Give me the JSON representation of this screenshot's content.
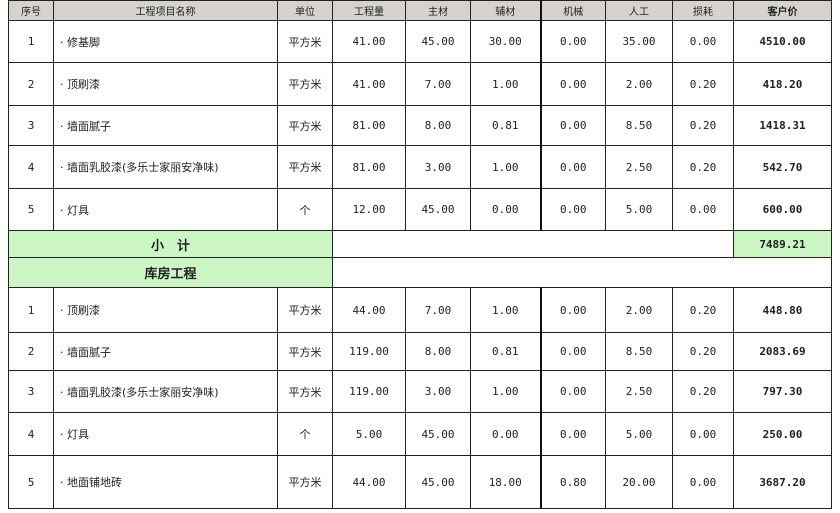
{
  "headers": [
    "序号",
    "工程项目名称",
    "单位",
    "工程量",
    "主材",
    "辅材",
    "机械",
    "人工",
    "损耗",
    "客户价"
  ],
  "section1": {
    "rows": [
      [
        "1",
        "· 修基脚",
        "平方米",
        "41.00",
        "45.00",
        "30.00",
        "0.00",
        "35.00",
        "0.00",
        "4510.00"
      ],
      [
        "2",
        "· 顶刷漆",
        "平方米",
        "41.00",
        "7.00",
        "1.00",
        "0.00",
        "2.00",
        "0.20",
        "418.20"
      ],
      [
        "3",
        "· 墙面腻子",
        "平方米",
        "81.00",
        "8.00",
        "0.81",
        "0.00",
        "8.50",
        "0.20",
        "1418.31"
      ],
      [
        "4",
        "· 墙面乳胶漆(多乐士家丽安净味)",
        "平方米",
        "81.00",
        "3.00",
        "1.00",
        "0.00",
        "2.50",
        "0.20",
        "542.70"
      ],
      [
        "5",
        "· 灯具",
        "个",
        "12.00",
        "45.00",
        "0.00",
        "0.00",
        "5.00",
        "0.00",
        "600.00"
      ]
    ],
    "subtotal_label": "小　计",
    "subtotal": "7489.21"
  },
  "section2": {
    "title": "库房工程",
    "rows": [
      [
        "1",
        "· 顶刷漆",
        "平方米",
        "44.00",
        "7.00",
        "1.00",
        "0.00",
        "2.00",
        "0.20",
        "448.80"
      ],
      [
        "2",
        "· 墙面腻子",
        "平方米",
        "119.00",
        "8.00",
        "0.81",
        "0.00",
        "8.50",
        "0.20",
        "2083.69"
      ],
      [
        "3",
        "· 墙面乳胶漆(多乐士家丽安净味)",
        "平方米",
        "119.00",
        "3.00",
        "1.00",
        "0.00",
        "2.50",
        "0.20",
        "797.30"
      ],
      [
        "4",
        "· 灯具",
        "个",
        "5.00",
        "45.00",
        "0.00",
        "0.00",
        "5.00",
        "0.00",
        "250.00"
      ],
      [
        "5",
        "· 地面铺地砖",
        "平方米",
        "44.00",
        "45.00",
        "18.00",
        "0.80",
        "20.00",
        "0.00",
        "3687.20"
      ]
    ]
  }
}
